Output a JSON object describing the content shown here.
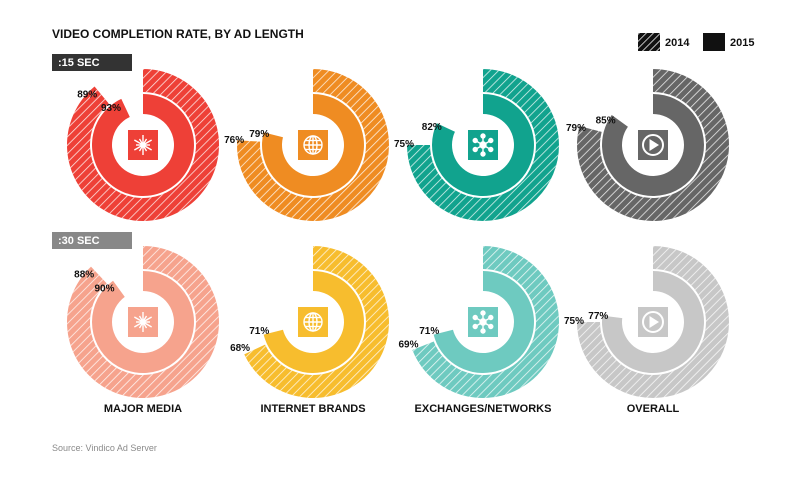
{
  "chart_data": {
    "type": "donut",
    "title": "VIDEO COMPLETION RATE, BY AD LENGTH",
    "legend": {
      "placement": "top-right",
      "entries": [
        {
          "name": "2014",
          "style": "hatched"
        },
        {
          "name": "2015",
          "style": "solid"
        }
      ]
    },
    "rows": [
      ":15 SEC",
      ":30 SEC"
    ],
    "categories": [
      "MAJOR MEDIA",
      "INTERNET BRANDS",
      "EXCHANGES/NETWORKS",
      "OVERALL"
    ],
    "category_icons": [
      "burst-icon",
      "globe-icon",
      "network-icon",
      "play-icon"
    ],
    "series": [
      {
        "name": "2014",
        "values": [
          [
            89,
            76,
            75,
            79
          ],
          [
            88,
            68,
            69,
            75
          ]
        ],
        "labels": [
          [
            "89%",
            "76%",
            "75%",
            "79%"
          ],
          [
            "88%",
            "68%",
            "69%",
            "75%"
          ]
        ]
      },
      {
        "name": "2015",
        "values": [
          [
            93,
            79,
            82,
            85
          ],
          [
            90,
            71,
            71,
            77
          ]
        ],
        "labels": [
          [
            "93%",
            "79%",
            "82%",
            "85%"
          ],
          [
            "90%",
            "71%",
            "71%",
            "77%"
          ]
        ]
      }
    ],
    "colors": [
      [
        "#ee4037",
        "#ef8c22",
        "#11a38e",
        "#666666"
      ],
      [
        "#f6a38d",
        "#f7bd2e",
        "#6ecac0",
        "#c7c7c7"
      ]
    ],
    "source": "Source: Vindico Ad Server"
  }
}
